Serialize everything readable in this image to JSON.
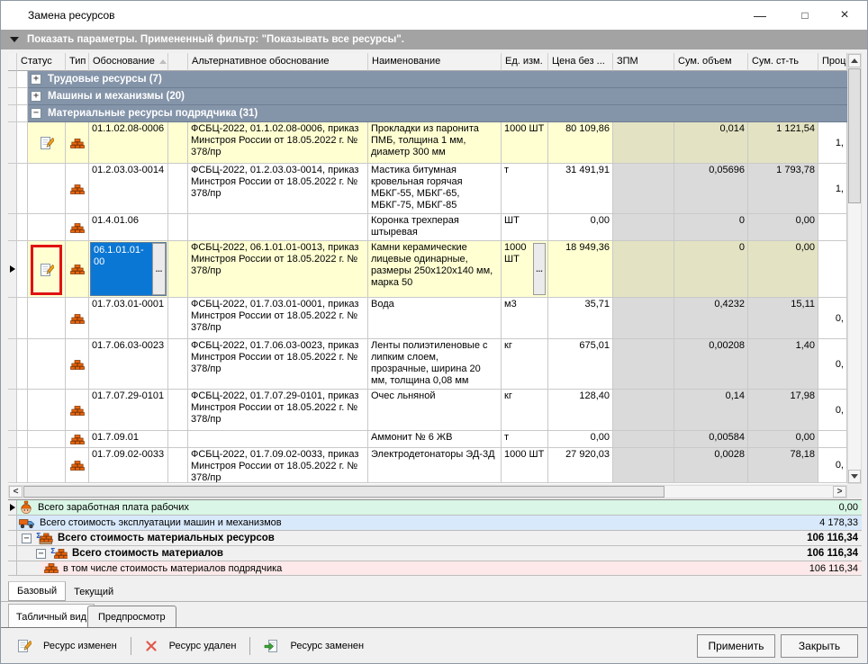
{
  "window": {
    "title": "Замена ресурсов",
    "controls": {
      "minimize": "—",
      "maximize": "□",
      "close": "×"
    }
  },
  "filter_bar": {
    "text": "Показать параметры. Примененный фильтр: \"Показывать все ресурсы\"."
  },
  "table": {
    "columns": [
      {
        "key": "marker",
        "label": ""
      },
      {
        "key": "status",
        "label": "Статус"
      },
      {
        "key": "type",
        "label": "Тип"
      },
      {
        "key": "code",
        "label": "Обоснование",
        "sort": true
      },
      {
        "key": "spacer",
        "label": ""
      },
      {
        "key": "alt",
        "label": "Альтернативное обоснование"
      },
      {
        "key": "name",
        "label": "Наименование"
      },
      {
        "key": "unit",
        "label": "Ед. изм."
      },
      {
        "key": "price",
        "label": "Цена без ..."
      },
      {
        "key": "zpm",
        "label": "ЗПМ"
      },
      {
        "key": "volume",
        "label": "Сум. объем"
      },
      {
        "key": "cost",
        "label": "Сум. ст-ть"
      },
      {
        "key": "percent",
        "label": "Проце"
      }
    ],
    "groups": [
      {
        "label": "Трудовые ресурсы (7)",
        "expanded": false
      },
      {
        "label": "Машины и механизмы (20)",
        "expanded": false
      },
      {
        "label": "Материальные ресурсы подрядчика (31)",
        "expanded": true
      }
    ],
    "rows": [
      {
        "status": "changed",
        "code": "01.1.02.08-0006",
        "alt": "ФСБЦ-2022, 01.1.02.08-0006, приказ Минстроя России от 18.05.2022 г. № 378/пр",
        "name": "Прокладки из паронита ПМБ, толщина 1 мм, диаметр 300 мм",
        "unit": "1000 ШТ",
        "price": "80 109,86",
        "zpm": "",
        "volume": "0,014",
        "cost": "1 121,54",
        "pct": "1,",
        "highlight": true,
        "selected": false,
        "annotated": false,
        "editing": false,
        "unit_button": false
      },
      {
        "status": "",
        "code": "01.2.03.03-0014",
        "alt": "ФСБЦ-2022, 01.2.03.03-0014, приказ Минстроя России от 18.05.2022 г. № 378/пр",
        "name": "Мастика битумная кровельная горячая МБКГ-55, МБКГ-65, МБКГ-75, МБКГ-85",
        "unit": "т",
        "price": "31 491,91",
        "zpm": "",
        "volume": "0,05696",
        "cost": "1 793,78",
        "pct": "1,",
        "highlight": false,
        "selected": false,
        "annotated": false,
        "editing": false,
        "unit_button": false
      },
      {
        "status": "",
        "code": "01.4.01.06",
        "alt": "",
        "name": "Коронка трехперая штыревая",
        "unit": "ШТ",
        "price": "0,00",
        "zpm": "",
        "volume": "0",
        "cost": "0,00",
        "pct": "",
        "highlight": false,
        "selected": false,
        "annotated": false,
        "editing": false,
        "unit_button": false
      },
      {
        "status": "changed",
        "code": "06.1.01.01-00",
        "alt": "ФСБЦ-2022, 06.1.01.01-0013, приказ Минстроя России от 18.05.2022 г. № 378/пр",
        "name": "Камни керамические лицевые одинарные, размеры 250х120х140 мм, марка 50",
        "unit": "1000 ШТ",
        "price": "18 949,36",
        "zpm": "",
        "volume": "0",
        "cost": "0,00",
        "pct": "",
        "highlight": true,
        "selected": true,
        "annotated": true,
        "editing": true,
        "unit_button": true
      },
      {
        "status": "",
        "code": "01.7.03.01-0001",
        "alt": "ФСБЦ-2022, 01.7.03.01-0001, приказ Минстроя России от 18.05.2022 г. № 378/пр",
        "name": "Вода",
        "unit": "м3",
        "price": "35,71",
        "zpm": "",
        "volume": "0,4232",
        "cost": "15,11",
        "pct": "0,",
        "highlight": false,
        "selected": false,
        "annotated": false,
        "editing": false,
        "unit_button": false
      },
      {
        "status": "",
        "code": "01.7.06.03-0023",
        "alt": "ФСБЦ-2022, 01.7.06.03-0023, приказ Минстроя России от 18.05.2022 г. № 378/пр",
        "name": "Ленты полиэтиленовые с липким слоем, прозрачные, ширина 20 мм, толщина 0,08 мм",
        "unit": "кг",
        "price": "675,01",
        "zpm": "",
        "volume": "0,00208",
        "cost": "1,40",
        "pct": "0,",
        "highlight": false,
        "selected": false,
        "annotated": false,
        "editing": false,
        "unit_button": false
      },
      {
        "status": "",
        "code": "01.7.07.29-0101",
        "alt": "ФСБЦ-2022, 01.7.07.29-0101, приказ Минстроя России от 18.05.2022 г. № 378/пр",
        "name": "Очес льняной",
        "unit": "кг",
        "price": "128,40",
        "zpm": "",
        "volume": "0,14",
        "cost": "17,98",
        "pct": "0,",
        "highlight": false,
        "selected": false,
        "annotated": false,
        "editing": false,
        "unit_button": false
      },
      {
        "status": "",
        "code": "01.7.09.01",
        "alt": "",
        "name": "Аммонит № 6 ЖВ",
        "unit": "т",
        "price": "0,00",
        "zpm": "",
        "volume": "0,00584",
        "cost": "0,00",
        "pct": "",
        "highlight": false,
        "selected": false,
        "annotated": false,
        "editing": false,
        "unit_button": false
      },
      {
        "status": "",
        "code": "01.7.09.02-0033",
        "alt": "ФСБЦ-2022, 01.7.09.02-0033, приказ Минстроя России от 18.05.2022 г. № 378/пр",
        "name": "Электродетонаторы ЭД-3Д",
        "unit": "1000 ШТ",
        "price": "27 920,03",
        "zpm": "",
        "volume": "0,0028",
        "cost": "78,18",
        "pct": "0,",
        "highlight": false,
        "selected": false,
        "annotated": false,
        "editing": false,
        "unit_button": false
      }
    ]
  },
  "summary": [
    {
      "label": "Всего заработная плата рабочих",
      "value": "0,00",
      "icon": "worker",
      "tint": "green",
      "marker": true,
      "bold": false,
      "collapse": false
    },
    {
      "label": "Всего стоимость эксплуатации машин и механизмов",
      "value": "4 178,33",
      "icon": "truck",
      "tint": "blue",
      "marker": false,
      "bold": false,
      "collapse": false
    },
    {
      "label": "Всего стоимость материальных ресурсов",
      "value": "106 116,34",
      "icon": "sigma-bricks",
      "tint": "gray",
      "marker": false,
      "bold": true,
      "collapse": true
    },
    {
      "label": "Всего стоимость материалов",
      "value": "106 116,34",
      "icon": "sigma-brick",
      "tint": "gray",
      "marker": false,
      "bold": true,
      "collapse": true
    },
    {
      "label": "в том числе стоимость материалов подрядчика",
      "value": "106 116,34",
      "icon": "brick",
      "tint": "pink",
      "marker": false,
      "bold": false,
      "collapse": false
    }
  ],
  "bottom_tabs": {
    "primary": [
      {
        "label": "Базовый",
        "active": true
      },
      {
        "label": "Текущий",
        "active": false
      }
    ],
    "view": [
      {
        "label": "Табличный вид",
        "active": true
      },
      {
        "label": "Предпросмотр",
        "active": false
      }
    ]
  },
  "legend": [
    {
      "icon": "edit-note",
      "label": "Ресурс изменен"
    },
    {
      "icon": "deleted-x",
      "label": "Ресурс удален"
    },
    {
      "icon": "replaced-doc",
      "label": "Ресурс заменен"
    }
  ],
  "buttons": {
    "apply": "Применить",
    "close": "Закрыть"
  },
  "colors": {
    "group_band": "#8494a9",
    "filter_bar": "#a3a3a3",
    "row_changed": "#ffffd2",
    "shaded_changed": "#e3e3c3",
    "shaded": "#dadada",
    "selection_blue": "#0b77d4",
    "annotation_red": "#e01212",
    "summary_green": "#d9f6e6",
    "summary_blue": "#d8e9fb",
    "summary_pink": "#fde9e9"
  }
}
